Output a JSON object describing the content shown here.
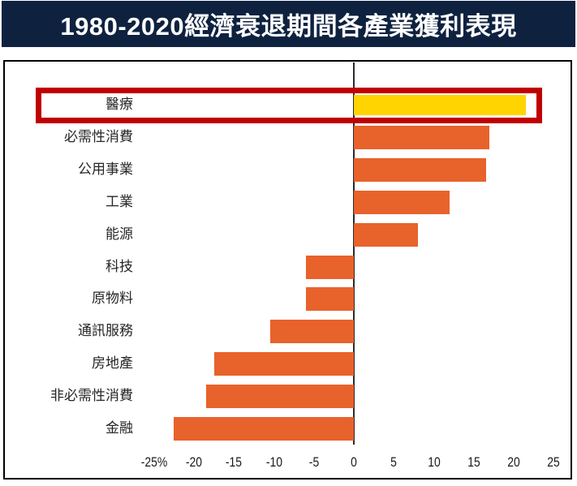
{
  "header": {
    "title": "1980-2020經濟衰退期間各產業獲利表現"
  },
  "colors": {
    "header_bg": "#0e2240",
    "header_text": "#ffffff",
    "bar_default": "#e8622b",
    "bar_highlight": "#ffd400",
    "highlight_box": "#c00000",
    "axis_line": "#2b2b2b",
    "frame_border": "#000000",
    "label_text": "#262626"
  },
  "chart_data": {
    "type": "bar",
    "orientation": "horizontal",
    "title": "1980-2020經濟衰退期間各產業獲利表現",
    "xlabel": "",
    "ylabel": "",
    "unit": "%",
    "grid": false,
    "legend": "none",
    "xlim": [
      -25,
      27
    ],
    "categories": [
      "醫療",
      "必需性消費",
      "公用事業",
      "工業",
      "能源",
      "科技",
      "原物料",
      "通訊服務",
      "房地產",
      "非必需性消費",
      "金融"
    ],
    "values": [
      21.5,
      17,
      16.5,
      12,
      8,
      -6,
      -6,
      -10.5,
      -17.5,
      -18.5,
      -22.5
    ],
    "highlighted_category": "醫療",
    "x_ticks": [
      {
        "value": -25,
        "label": "-25%"
      },
      {
        "value": -20,
        "label": "-20"
      },
      {
        "value": -15,
        "label": "-15"
      },
      {
        "value": -10,
        "label": "-10"
      },
      {
        "value": -5,
        "label": "-5"
      },
      {
        "value": 0,
        "label": "0"
      },
      {
        "value": 5,
        "label": "5"
      },
      {
        "value": 10,
        "label": "10"
      },
      {
        "value": 15,
        "label": "15"
      },
      {
        "value": 20,
        "label": "20"
      },
      {
        "value": 25,
        "label": "25"
      }
    ]
  }
}
